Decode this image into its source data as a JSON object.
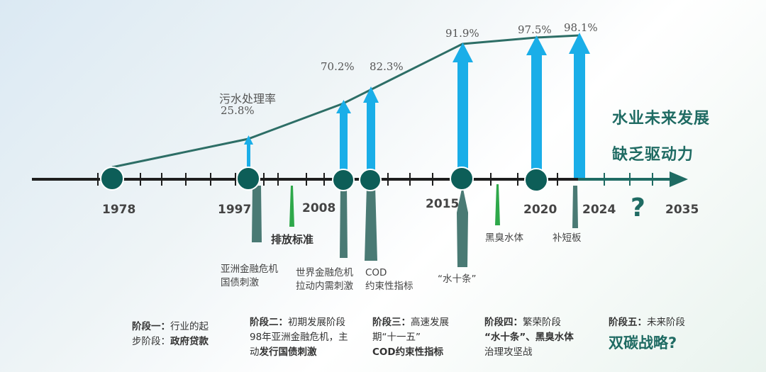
{
  "chart_label": "污水处理率",
  "rates": [
    {
      "year": "1997",
      "value": "25.8%"
    },
    {
      "year": "2008",
      "value": "70.2%"
    },
    {
      "year": "2008b",
      "value": "82.3%"
    },
    {
      "year": "2015",
      "value": "91.9%"
    },
    {
      "year": "2020",
      "value": "97.5%"
    },
    {
      "year": "2024",
      "value": "98.1%"
    }
  ],
  "years": [
    "1978",
    "1997",
    "2008",
    "2015",
    "2020",
    "2024",
    "2035"
  ],
  "future_mark": "?",
  "future_text": {
    "line1": "水业未来发展",
    "line2": "缺乏驱动力"
  },
  "events": {
    "discharge": "排放标准",
    "asia_crisis": {
      "line1": "亚洲金融危机",
      "line2": "国债刺激"
    },
    "world_crisis": {
      "line1": "世界金融危机",
      "line2": "拉动内需刺激"
    },
    "cod": {
      "line1": "COD",
      "line2": "约束性指标"
    },
    "water_ten": "“水十条”",
    "black_odor": "黑臭水体",
    "shortboard": "补短板"
  },
  "stages": {
    "s1": {
      "title": "阶段一：",
      "text1": "行业的起",
      "text2": "步阶段：",
      "bold": "政府贷款"
    },
    "s2": {
      "title": "阶段二：",
      "text1": "初期发展阶段",
      "text2": "98年亚洲金融危机，主",
      "text3": "动",
      "bold": "发行国债刺激"
    },
    "s3": {
      "title": "阶段三：",
      "text1": "高速发展",
      "text2": "期“十一五”",
      "bold": "COD约束性指标"
    },
    "s4": {
      "title": "阶段四：",
      "text1": "繁荣阶段",
      "bold": "“水十条”、黑臭水体",
      "text2": "治理攻坚战"
    },
    "s5": {
      "title": "阶段五：",
      "text1": "未来阶段",
      "bold": "双碳战略?"
    }
  },
  "colors": {
    "teal": "#1f6b63",
    "arrow": "#1aaee8",
    "marker_gray": "#4a7a74",
    "green": "#2ea84a",
    "axis": "#222222"
  }
}
